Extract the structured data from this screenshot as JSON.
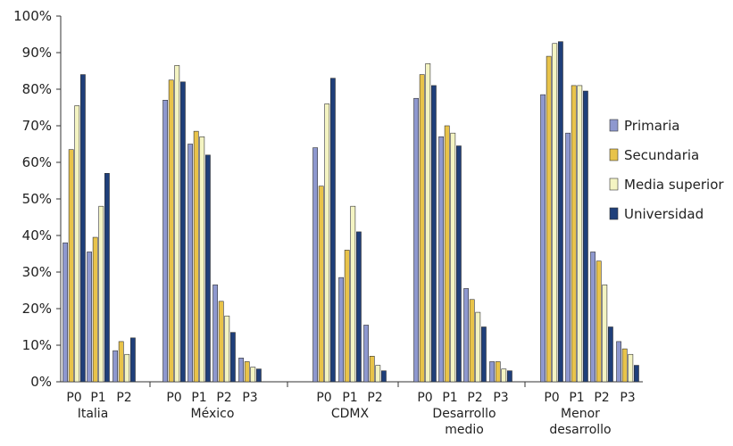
{
  "chart_data": {
    "type": "bar",
    "title": "",
    "xlabel": "",
    "ylabel": "",
    "ylim": [
      0,
      100
    ],
    "ytick_labels": [
      "0%",
      "10%",
      "20%",
      "30%",
      "40%",
      "50%",
      "60%",
      "70%",
      "80%",
      "90%",
      "100%"
    ],
    "legend_position": "right",
    "series": [
      {
        "name": "Primaria",
        "color": "#8E98CF"
      },
      {
        "name": "Secundaria",
        "color": "#E8C34A"
      },
      {
        "name": "Media superior",
        "color": "#F4F4C2"
      },
      {
        "name": "Universidad",
        "color": "#1F3F7A"
      }
    ],
    "groups": [
      {
        "label": [
          "Italia"
        ],
        "categories": [
          "P0",
          "P1",
          "P2"
        ],
        "values": [
          [
            38,
            63.5,
            75.5,
            84
          ],
          [
            35.5,
            39.5,
            48,
            57
          ],
          [
            8.5,
            11,
            7.5,
            12
          ]
        ]
      },
      {
        "label": [
          "México"
        ],
        "categories": [
          "P0",
          "P1",
          "P2",
          "P3"
        ],
        "values": [
          [
            77,
            82.5,
            86.5,
            82
          ],
          [
            65,
            68.5,
            67,
            62
          ],
          [
            26.5,
            22,
            18,
            13.5
          ],
          [
            6.5,
            5.5,
            4,
            3.5
          ]
        ]
      },
      {
        "label": [
          "CDMX"
        ],
        "categories": [
          "P0",
          "P1",
          "P2"
        ],
        "values": [
          [
            64,
            53.5,
            76,
            83
          ],
          [
            28.5,
            36,
            48,
            41
          ],
          [
            15.5,
            7,
            4.5,
            3
          ]
        ]
      },
      {
        "label": [
          "Desarrollo",
          "medio"
        ],
        "categories": [
          "P0",
          "P1",
          "P2",
          "P3"
        ],
        "values": [
          [
            77.5,
            84,
            87,
            81
          ],
          [
            67,
            70,
            68,
            64.5
          ],
          [
            25.5,
            22.5,
            19,
            15
          ],
          [
            5.5,
            5.5,
            3.5,
            3
          ]
        ]
      },
      {
        "label": [
          "Menor",
          "desarrollo"
        ],
        "categories": [
          "P0",
          "P1",
          "P2",
          "P3"
        ],
        "values": [
          [
            78.5,
            89,
            92.5,
            93
          ],
          [
            68,
            81,
            81,
            79.5
          ],
          [
            35.5,
            33,
            26.5,
            15
          ],
          [
            11,
            9,
            7.5,
            4.5
          ]
        ]
      }
    ]
  }
}
